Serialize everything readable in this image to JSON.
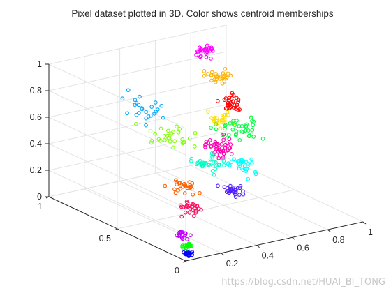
{
  "chart_data": {
    "type": "scatter",
    "title": "Pixel dataset plotted in 3D. Color shows centroid memberships",
    "xlim": [
      0,
      1
    ],
    "ylim": [
      0,
      1
    ],
    "zlim": [
      0,
      1
    ],
    "grid": true,
    "x_ticks": [
      "0.2",
      "0.4",
      "0.6",
      "0.8",
      "1"
    ],
    "y_ticks": [
      "0",
      "0.5",
      "1"
    ],
    "z_ticks": [
      "0",
      "0.2",
      "0.4",
      "0.6",
      "0.8",
      "1"
    ],
    "clusters": [
      {
        "color": "#ff00ff",
        "center": [
          0.78,
          0.86,
          0.93
        ],
        "spread": [
          0.04,
          0.04,
          0.04
        ],
        "count": 26
      },
      {
        "color": "#ffb000",
        "center": [
          0.75,
          0.72,
          0.82
        ],
        "spread": [
          0.05,
          0.07,
          0.05
        ],
        "count": 30
      },
      {
        "color": "#ff0000",
        "center": [
          0.7,
          0.58,
          0.7
        ],
        "spread": [
          0.04,
          0.07,
          0.05
        ],
        "count": 30
      },
      {
        "color": "#00a8ff",
        "center": [
          0.3,
          0.7,
          0.73
        ],
        "spread": [
          0.07,
          0.13,
          0.07
        ],
        "count": 24
      },
      {
        "color": "#ffe000",
        "center": [
          0.62,
          0.55,
          0.62
        ],
        "spread": [
          0.05,
          0.05,
          0.05
        ],
        "count": 25
      },
      {
        "color": "#80ff00",
        "center": [
          0.33,
          0.56,
          0.58
        ],
        "spread": [
          0.07,
          0.13,
          0.07
        ],
        "count": 30
      },
      {
        "color": "#00ff40",
        "center": [
          0.72,
          0.53,
          0.53
        ],
        "spread": [
          0.09,
          0.09,
          0.05
        ],
        "count": 40
      },
      {
        "color": "#ff00b0",
        "center": [
          0.55,
          0.45,
          0.47
        ],
        "spread": [
          0.05,
          0.07,
          0.05
        ],
        "count": 45
      },
      {
        "color": "#00ffc8",
        "center": [
          0.48,
          0.45,
          0.38
        ],
        "spread": [
          0.07,
          0.07,
          0.04
        ],
        "count": 35
      },
      {
        "color": "#00ffff",
        "center": [
          0.63,
          0.4,
          0.35
        ],
        "spread": [
          0.05,
          0.07,
          0.05
        ],
        "count": 30
      },
      {
        "color": "#ff6000",
        "center": [
          0.28,
          0.37,
          0.3
        ],
        "spread": [
          0.05,
          0.07,
          0.04
        ],
        "count": 28
      },
      {
        "color": "#ff1060",
        "center": [
          0.25,
          0.3,
          0.18
        ],
        "spread": [
          0.04,
          0.05,
          0.04
        ],
        "count": 30
      },
      {
        "color": "#5020ff",
        "center": [
          0.52,
          0.32,
          0.22
        ],
        "spread": [
          0.04,
          0.05,
          0.03
        ],
        "count": 30
      },
      {
        "color": "#c000ff",
        "center": [
          0.1,
          0.15,
          0.09
        ],
        "spread": [
          0.02,
          0.03,
          0.02
        ],
        "count": 20
      },
      {
        "color": "#00ff00",
        "center": [
          0.08,
          0.1,
          0.04
        ],
        "spread": [
          0.02,
          0.02,
          0.015
        ],
        "count": 20
      },
      {
        "color": "#0000ff",
        "center": [
          0.05,
          0.05,
          0.015
        ],
        "spread": [
          0.015,
          0.015,
          0.01
        ],
        "count": 25
      }
    ]
  },
  "watermark": "https://blog.csdn.net/HUAI_BI_TONG"
}
